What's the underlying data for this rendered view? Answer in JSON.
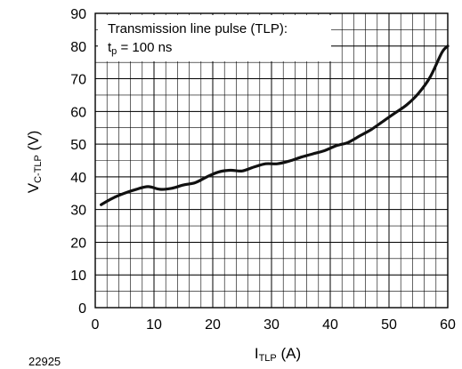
{
  "figure_id": "22925",
  "chart_data": {
    "type": "line",
    "title": "",
    "xlabel_main": "I",
    "xlabel_sub": "TLP",
    "xlabel_unit": " (A)",
    "ylabel_main": "V",
    "ylabel_sub": "C-TLP",
    "ylabel_unit": " (V)",
    "xlim": [
      0,
      60
    ],
    "ylim": [
      0,
      90
    ],
    "x_ticks": [
      0,
      10,
      20,
      30,
      40,
      50,
      60
    ],
    "y_ticks": [
      0,
      10,
      20,
      30,
      40,
      50,
      60,
      70,
      80,
      90
    ],
    "x_minor_step": 2,
    "y_minor_step": 5,
    "grid": true,
    "annotation_line1": "Transmission line pulse (TLP):",
    "annotation_line2_main": "t",
    "annotation_line2_sub": "p",
    "annotation_line2_rest": " = 100 ns",
    "series": [
      {
        "color": "#111111",
        "x": [
          1,
          3,
          5,
          7,
          9,
          11,
          13,
          15,
          17,
          19,
          21,
          23,
          25,
          27,
          29,
          31,
          33,
          35,
          37,
          39,
          41,
          43,
          45,
          47,
          49,
          51,
          53,
          55,
          57,
          59,
          60
        ],
        "y": [
          31.5,
          33.5,
          35.0,
          36.2,
          37.0,
          36.2,
          36.5,
          37.5,
          38.2,
          40.0,
          41.5,
          42.0,
          41.8,
          43.0,
          44.0,
          44.0,
          44.8,
          46.0,
          47.0,
          48.0,
          49.5,
          50.5,
          52.5,
          54.5,
          57.0,
          59.5,
          62.0,
          65.5,
          70.5,
          78.0,
          80.0
        ]
      }
    ]
  }
}
